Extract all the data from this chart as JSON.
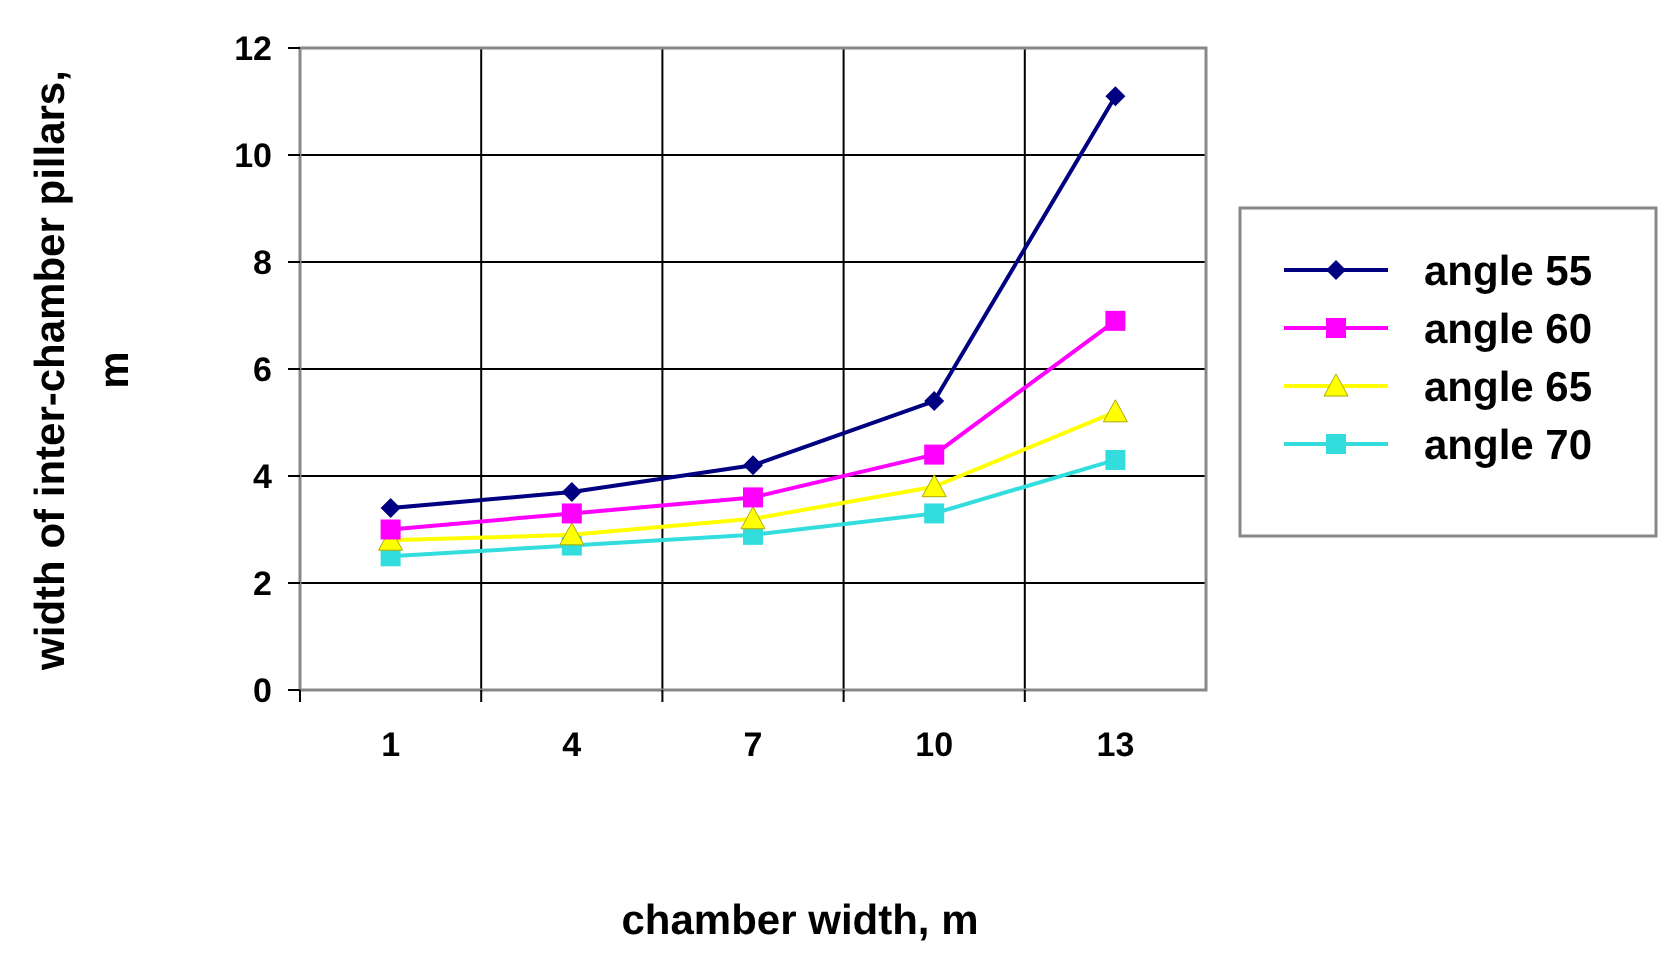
{
  "chart_data": {
    "type": "line",
    "xlabel": "chamber width, m",
    "ylabel": "width of inter-chamber pillars, m",
    "categories": [
      "1",
      "4",
      "7",
      "10",
      "13"
    ],
    "ylim": [
      0,
      12
    ],
    "yticks": [
      0,
      2,
      4,
      6,
      8,
      10,
      12
    ],
    "grid": true,
    "legend": "right",
    "series": [
      {
        "name": "angle 55",
        "color": "#000080",
        "marker": "diamond",
        "values": [
          3.4,
          3.7,
          4.2,
          5.4,
          11.1
        ]
      },
      {
        "name": "angle 60",
        "color": "#ff00ff",
        "marker": "square",
        "values": [
          3.0,
          3.3,
          3.6,
          4.4,
          6.9
        ]
      },
      {
        "name": "angle 65",
        "color": "#ffff00",
        "marker": "triangle",
        "values": [
          2.8,
          2.9,
          3.2,
          3.8,
          5.2
        ]
      },
      {
        "name": "angle 70",
        "color": "#33dddd",
        "marker": "square",
        "values": [
          2.5,
          2.7,
          2.9,
          3.3,
          4.3
        ]
      }
    ]
  }
}
